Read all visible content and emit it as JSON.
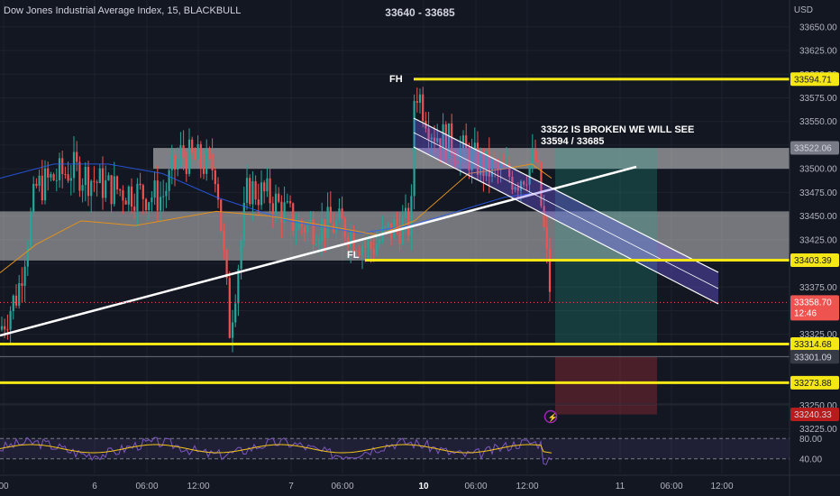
{
  "header": {
    "symbol": "Dow Jones Industrial Average Index, 15, BLACKBULL",
    "range": "33640 - 33685",
    "currency": "USD"
  },
  "colors": {
    "background": "#131722",
    "up": "#26a69a",
    "down": "#ef5350",
    "level": "#f5e616",
    "zone": "#d6d6d6",
    "channel": "#7b61ff",
    "ma_orange": "#e2911c",
    "ma_blue": "#2962ff"
  },
  "chart_data": {
    "type": "candlestick",
    "ylim": [
      33215,
      33670
    ],
    "price_ticks": [
      33650,
      33625,
      33600,
      33575,
      33550,
      33525,
      33500,
      33475,
      33450,
      33425,
      33400,
      33375,
      33350,
      33325,
      33300,
      33275,
      33250,
      33225
    ],
    "x_ticks": [
      "00",
      "6",
      "06:00",
      "12:00",
      "7",
      "06:00",
      "10",
      "06:00",
      "12:00",
      "11",
      "06:00",
      "12:00"
    ],
    "levels": [
      {
        "price": 33594.71,
        "label": "33594.71"
      },
      {
        "price": 33403.39,
        "label": "33403.39"
      },
      {
        "price": 33314.68,
        "label": "33314.68"
      },
      {
        "price": 33273.88,
        "label": "33273.88"
      }
    ],
    "other_price_labels": [
      {
        "price": 33522.06,
        "label": "33522.06",
        "color": "#787b86"
      },
      {
        "price": 33301.43,
        "label": "33301.43",
        "color": "#363a45"
      },
      {
        "price": 33301.09,
        "label": "33301.09",
        "color": "#363a45"
      },
      {
        "price": 33240.33,
        "label": "33240.33",
        "color": "#b71c1c"
      }
    ],
    "last_price": {
      "price": 33358.7,
      "label": "33358.70",
      "countdown": "12:46"
    },
    "annotations": [
      "FH",
      "FL",
      "33522 IS BROKEN WE WILL SEE",
      "33594 / 33685"
    ],
    "zones": [
      [
        33500,
        33522
      ],
      [
        33403,
        33455
      ]
    ],
    "rsi": {
      "ticks": [
        "80.00",
        "40.00"
      ],
      "levels": [
        80,
        40
      ]
    }
  }
}
